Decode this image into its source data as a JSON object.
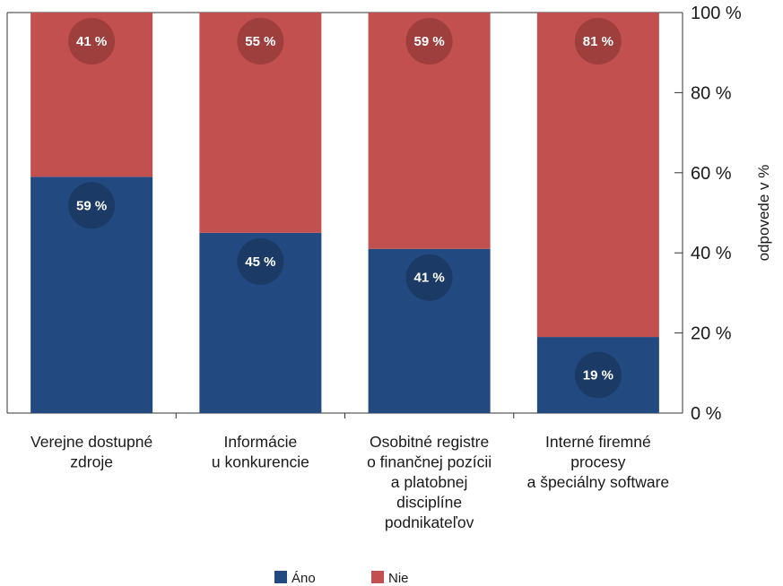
{
  "chart_data": {
    "type": "bar",
    "stacked": true,
    "categories": [
      [
        "Verejne dostupné",
        "zdroje"
      ],
      [
        "Informácie",
        "u konkurencie"
      ],
      [
        "Osobitné registre",
        "o finančnej pozícii",
        "a platobnej",
        "disciplíne",
        "podnikateľov"
      ],
      [
        "Interné firemné",
        "procesy",
        "a špeciálny software"
      ]
    ],
    "series": [
      {
        "name": "Áno",
        "values": [
          59,
          45,
          41,
          19
        ],
        "labels": [
          "59 %",
          "45 %",
          "41 %",
          "19 %"
        ],
        "color": "#234a80"
      },
      {
        "name": "Nie",
        "values": [
          41,
          55,
          59,
          81
        ],
        "labels": [
          "41 %",
          "55 %",
          "59 %",
          "81 %"
        ],
        "color": "#c2504f"
      }
    ],
    "ylabel": "odpovede v %",
    "ylim": [
      0,
      100
    ],
    "yticks": [
      0,
      20,
      40,
      60,
      80,
      100
    ],
    "ytick_labels": [
      "0 %",
      "20 %",
      "40 %",
      "60 %",
      "80 %",
      "100 %"
    ],
    "y_axis_position": "right",
    "legend_position": "bottom",
    "grid": false
  }
}
